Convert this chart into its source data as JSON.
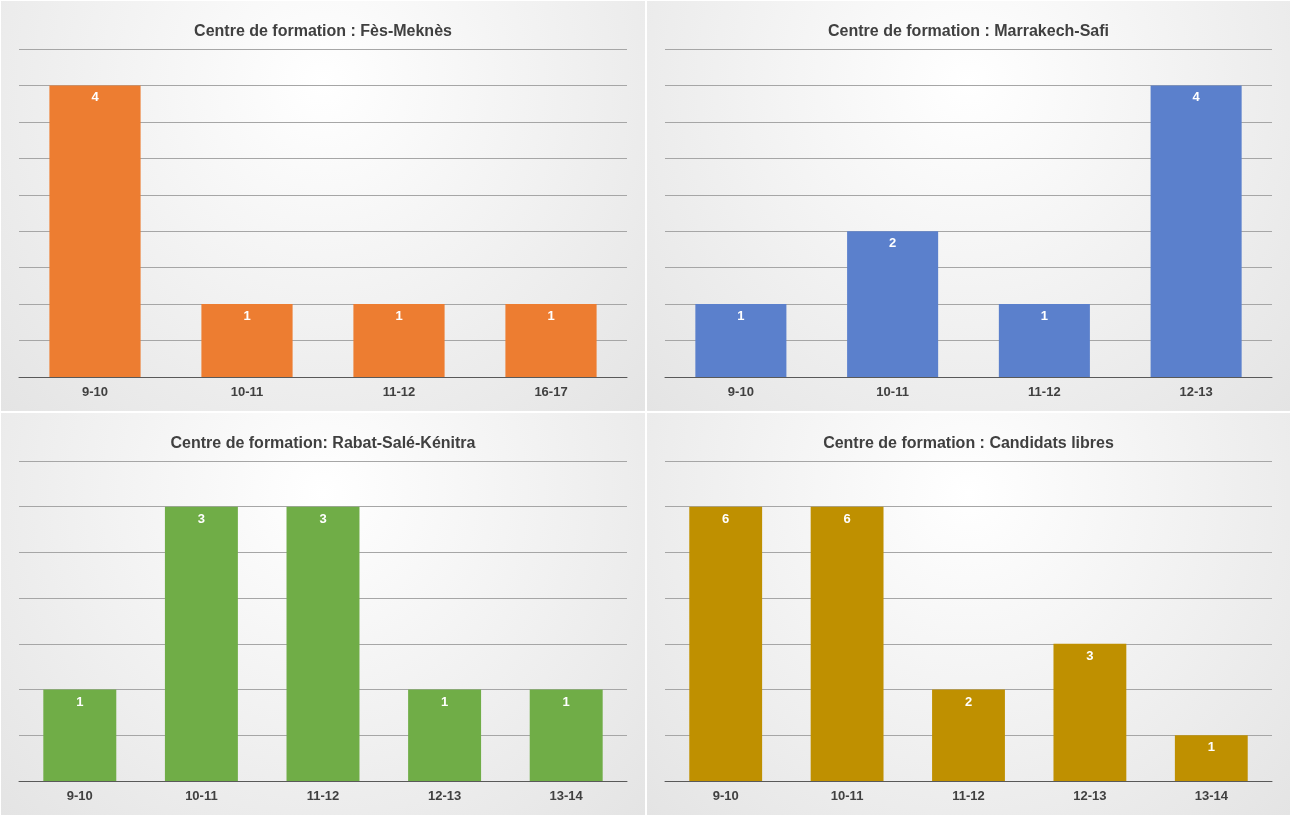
{
  "chart_data": [
    {
      "type": "bar",
      "title": "Centre de formation : Fès-Meknès",
      "categories": [
        "9-10",
        "10-11",
        "11-12",
        "16-17"
      ],
      "values": [
        4,
        1,
        1,
        1
      ],
      "color": "#ed7d31",
      "ylim": [
        0,
        4.5
      ],
      "yticks": [
        {
          "value": 0,
          "label": null
        },
        {
          "value": 0.5,
          "label": null
        },
        {
          "value": 1,
          "label": null
        },
        {
          "value": 1.5,
          "label": null
        },
        {
          "value": 2,
          "label": null
        },
        {
          "value": 2.5,
          "label": null
        },
        {
          "value": 3,
          "label": null
        },
        {
          "value": 3.5,
          "label": null
        },
        {
          "value": 4,
          "label": null
        },
        {
          "value": 4.5,
          "label": null
        }
      ],
      "grid": "y",
      "data_labels": true,
      "tick_labels": "x"
    },
    {
      "type": "bar",
      "title": "Centre de formation : Marrakech-Safi",
      "categories": [
        "9-10",
        "10-11",
        "11-12",
        "12-13"
      ],
      "values": [
        1,
        2,
        1,
        4
      ],
      "color": "#5b80cc",
      "ylim": [
        0,
        4.5
      ],
      "yticks": [
        {
          "value": 0,
          "label": null
        },
        {
          "value": 0.5,
          "label": null
        },
        {
          "value": 1,
          "label": null
        },
        {
          "value": 1.5,
          "label": null
        },
        {
          "value": 2,
          "label": null
        },
        {
          "value": 2.5,
          "label": null
        },
        {
          "value": 3,
          "label": null
        },
        {
          "value": 3.5,
          "label": null
        },
        {
          "value": 4,
          "label": null
        },
        {
          "value": 4.5,
          "label": null
        }
      ],
      "grid": "y",
      "data_labels": true,
      "tick_labels": "x"
    },
    {
      "type": "bar",
      "title": "Centre de formation: Rabat-Salé-Kénitra",
      "categories": [
        "9-10",
        "10-11",
        "11-12",
        "12-13",
        "13-14"
      ],
      "values": [
        1,
        3,
        3,
        1,
        1
      ],
      "color": "#70ad47",
      "ylim": [
        0,
        3.5
      ],
      "yticks": [
        {
          "value": 0,
          "label": null
        },
        {
          "value": 0.5,
          "label": null
        },
        {
          "value": 1,
          "label": null
        },
        {
          "value": 1.5,
          "label": null
        },
        {
          "value": 2,
          "label": null
        },
        {
          "value": 2.5,
          "label": null
        },
        {
          "value": 3,
          "label": null
        },
        {
          "value": 3.5,
          "label": null
        }
      ],
      "grid": "y",
      "data_labels": true,
      "tick_labels": "x"
    },
    {
      "type": "bar",
      "title": "Centre de formation : Candidats libres",
      "categories": [
        "9-10",
        "10-11",
        "11-12",
        "12-13",
        "13-14"
      ],
      "values": [
        6,
        6,
        2,
        3,
        1
      ],
      "color": "#bf9000",
      "ylim": [
        0,
        7
      ],
      "yticks": [
        {
          "value": 0,
          "label": null
        },
        {
          "value": 1,
          "label": null
        },
        {
          "value": 2,
          "label": null
        },
        {
          "value": 3,
          "label": null
        },
        {
          "value": 4,
          "label": null
        },
        {
          "value": 5,
          "label": null
        },
        {
          "value": 6,
          "label": null
        },
        {
          "value": 7,
          "label": null
        }
      ],
      "grid": "y",
      "data_labels": true,
      "tick_labels": "x"
    }
  ]
}
